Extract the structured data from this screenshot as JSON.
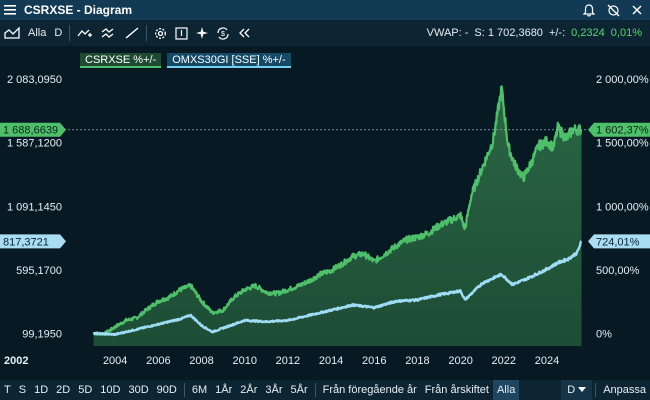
{
  "window": {
    "title": "CSRXSE - Diagram"
  },
  "toolbar": {
    "items": [
      "Alla",
      "D"
    ],
    "vwap_label": "VWAP: -",
    "last_label": "S: 1 702,3680",
    "change_label": "+/-:",
    "change_value": "0,2324",
    "change_pct": "0,01%"
  },
  "legend": {
    "series1": "CSRXSE %+/-",
    "series2": "OMXS30GI [SSE] %+/-"
  },
  "chart_data": {
    "type": "area",
    "x_start_label": "2002",
    "x_tick_labels": [
      "2004",
      "2006",
      "2008",
      "2010",
      "2012",
      "2014",
      "2016",
      "2018",
      "2020",
      "2022",
      "2024"
    ],
    "left_tick_labels": [
      "2 083,0950",
      "1 587,1200",
      "1 091,1450",
      "595,1700",
      "99,1950"
    ],
    "right_tick_labels": [
      "2 000,00%",
      "1 500,00%",
      "1 000,00%",
      "500,00%",
      "0%"
    ],
    "left_ylim": [
      0,
      2280
    ],
    "left_ticks": [
      2083.095,
      1587.12,
      1091.145,
      595.17,
      99.195
    ],
    "markers": {
      "series1_left": "1 688,6639",
      "series1_right": "1 602,37%",
      "series2_left": "817,3721",
      "series2_right": "724,01%"
    },
    "series": [
      {
        "name": "CSRXSE %+/-",
        "color": "#4ec06a",
        "x": [
          2003.0,
          2003.5,
          2004.0,
          2004.5,
          2005.0,
          2005.5,
          2006.0,
          2006.5,
          2007.0,
          2007.5,
          2008.0,
          2008.5,
          2009.0,
          2009.5,
          2010.0,
          2010.5,
          2011.0,
          2011.5,
          2012.0,
          2012.5,
          2013.0,
          2013.5,
          2014.0,
          2014.5,
          2015.0,
          2015.5,
          2016.0,
          2016.5,
          2017.0,
          2017.5,
          2018.0,
          2018.5,
          2019.0,
          2019.5,
          2020.0,
          2020.2,
          2020.5,
          2021.0,
          2021.5,
          2021.9,
          2022.2,
          2022.5,
          2022.9,
          2023.3,
          2023.6,
          2024.0,
          2024.3,
          2024.5,
          2024.9,
          2025.2,
          2025.6
        ],
        "values": [
          99,
          95,
          150,
          200,
          220,
          290,
          350,
          380,
          440,
          470,
          350,
          260,
          280,
          380,
          440,
          470,
          420,
          410,
          440,
          470,
          510,
          560,
          590,
          640,
          700,
          720,
          660,
          720,
          780,
          830,
          850,
          880,
          940,
          980,
          1020,
          910,
          1180,
          1390,
          1600,
          2010,
          1560,
          1420,
          1310,
          1440,
          1560,
          1600,
          1550,
          1700,
          1620,
          1690,
          1689
        ]
      },
      {
        "name": "OMXS30GI [SSE] %+/-",
        "color": "#9fdcf5",
        "x": [
          2003.0,
          2004.0,
          2005.0,
          2006.0,
          2007.0,
          2007.5,
          2008.0,
          2008.5,
          2009.0,
          2010.0,
          2011.0,
          2012.0,
          2013.0,
          2014.0,
          2015.0,
          2016.0,
          2017.0,
          2018.0,
          2019.0,
          2020.0,
          2020.2,
          2021.0,
          2021.9,
          2022.4,
          2023.0,
          2023.5,
          2024.0,
          2024.5,
          2025.0,
          2025.4,
          2025.6
        ],
        "values": [
          99,
          90,
          130,
          170,
          210,
          240,
          160,
          110,
          140,
          200,
          190,
          200,
          240,
          280,
          320,
          300,
          350,
          360,
          400,
          430,
          360,
          490,
          560,
          480,
          520,
          560,
          600,
          650,
          680,
          730,
          817
        ]
      }
    ],
    "xlim": [
      2002,
      2025.9
    ]
  },
  "bottombar": {
    "ranges": [
      "T",
      "S",
      "1D",
      "2D",
      "5D",
      "10D",
      "30D",
      "90D",
      "6M",
      "1År",
      "2År",
      "3År",
      "5År",
      "Från föregående år",
      "Från årskiftet",
      "Alla"
    ],
    "active": "Alla",
    "interval": "D",
    "adjust": "Anpassa"
  }
}
